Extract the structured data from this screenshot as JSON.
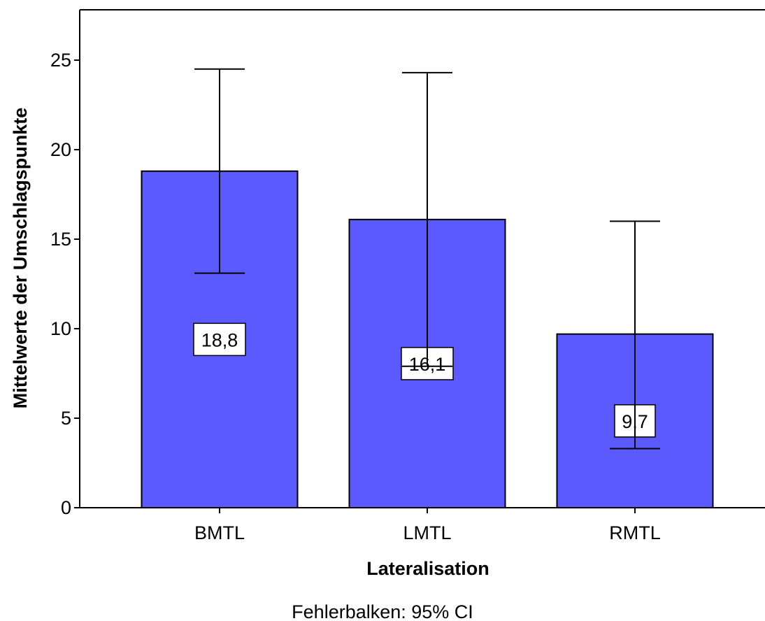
{
  "chart_data": {
    "type": "bar",
    "categories": [
      "BMTL",
      "LMTL",
      "RMTL"
    ],
    "values": [
      18.8,
      16.1,
      9.7
    ],
    "value_labels": [
      "18,8",
      "16,1",
      "9,7"
    ],
    "error_bars": {
      "lower": [
        13.1,
        7.9,
        3.3
      ],
      "upper": [
        24.5,
        24.3,
        16.0
      ]
    },
    "xlabel": "Lateralisation",
    "ylabel": "Mittelwerte der Umschlagspunkte",
    "ylim": [
      0,
      28
    ],
    "yticks": [
      0,
      5,
      10,
      15,
      20,
      25
    ],
    "grid": false,
    "footnote": "Fehlerbalken: 95% CI",
    "colors": {
      "bar_fill": "#5a5aff",
      "bar_stroke": "#000000",
      "background": "#ffffff"
    }
  }
}
